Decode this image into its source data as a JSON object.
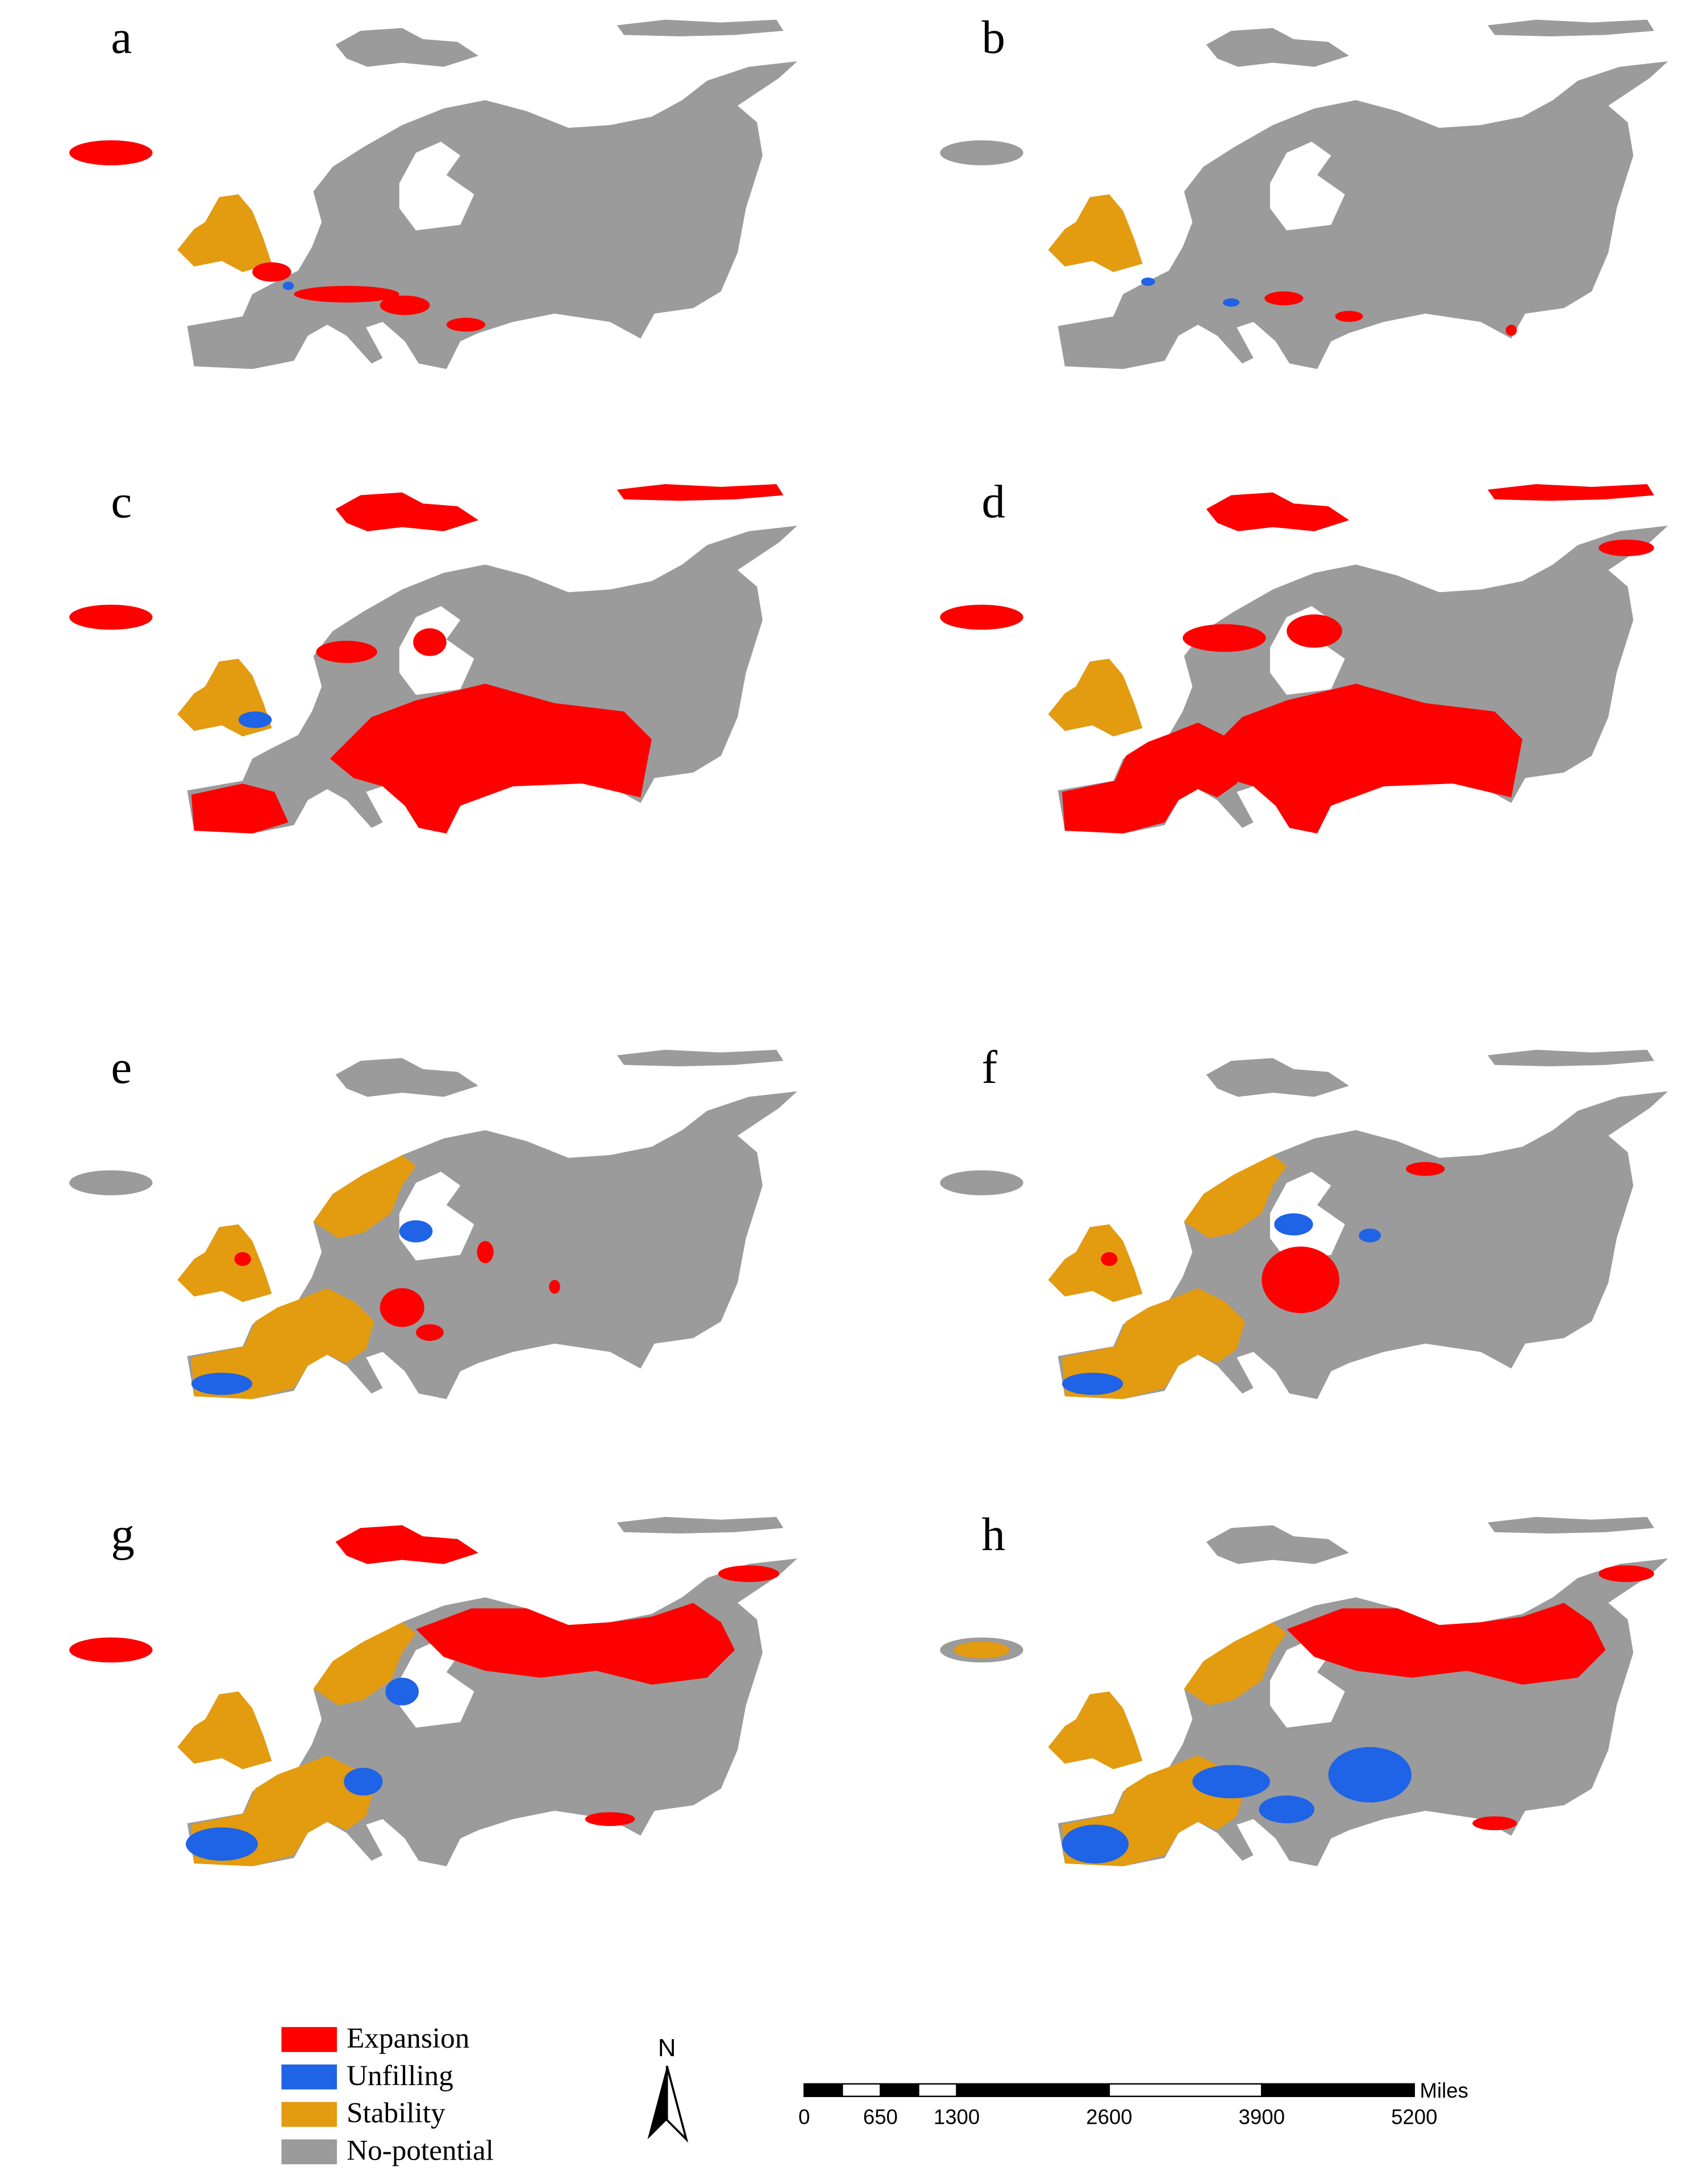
{
  "panels": [
    {
      "label": "a"
    },
    {
      "label": "b"
    },
    {
      "label": "c"
    },
    {
      "label": "d"
    },
    {
      "label": "e"
    },
    {
      "label": "f"
    },
    {
      "label": "g"
    },
    {
      "label": "h"
    }
  ],
  "legend": {
    "items": [
      {
        "label": "Expansion",
        "color": "#ff0000"
      },
      {
        "label": "Unfilling",
        "color": "#1f63e6"
      },
      {
        "label": "Stability",
        "color": "#e39b0f"
      },
      {
        "label": "No-potential",
        "color": "#9b9b9b"
      }
    ]
  },
  "north_arrow": {
    "label": "N"
  },
  "scale_bar": {
    "ticks": [
      0,
      650,
      1300,
      2600,
      3900,
      5200
    ],
    "unit": "Miles"
  }
}
